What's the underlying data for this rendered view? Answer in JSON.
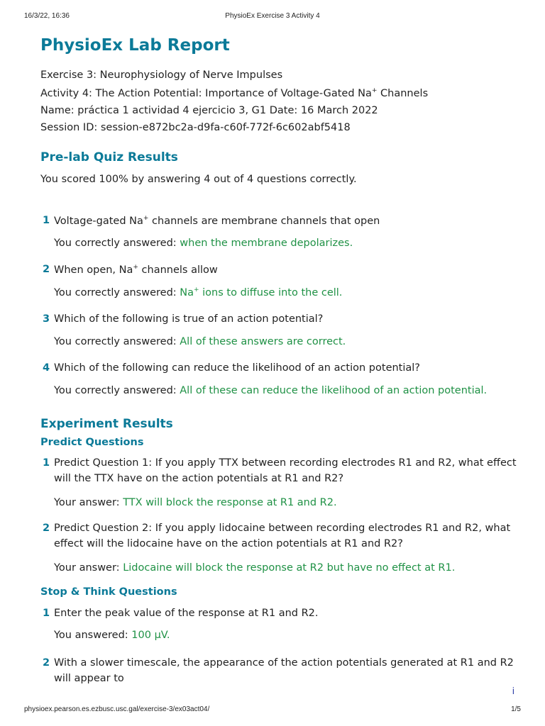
{
  "header": {
    "datetime": "16/3/22, 16:36",
    "title": "PhysioEx Exercise 3 Activity 4"
  },
  "report": {
    "title": "PhysioEx Lab Report",
    "exercise": "Exercise 3: Neurophysiology of Nerve Impulses",
    "activity_a": "Activity 4: The Action Potential: Importance of Voltage-Gated Na",
    "activity_sup": "+",
    "activity_b": " Channels",
    "name": "Name:  práctica 1 actividad 4 ejercicio 3, G1 Date: 16 March 2022",
    "session": "Session ID: session-e872bc2a-d9fa-c60f-772f-6c602abf5418"
  },
  "prelab": {
    "heading": "Pre-lab Quiz Results",
    "score": "You scored 100% by answering 4 out of 4 questions correctly.",
    "answer_prefix": "You correctly answered: ",
    "questions": [
      {
        "num": "1",
        "q_a": "Voltage-gated Na",
        "q_sup": "+",
        "q_b": " channels are membrane channels that open",
        "ans_a": "when the membrane depolarizes."
      },
      {
        "num": "2",
        "q_a": "When open, Na",
        "q_sup": "+",
        "q_b": " channels allow",
        "ans_a": "Na",
        "ans_sup": "+",
        "ans_b": " ions to diffuse into the cell."
      },
      {
        "num": "3",
        "q_a": "Which of the following is true of an action potential?",
        "ans_a": "All of these answers are correct."
      },
      {
        "num": "4",
        "q_a": "Which of the following can reduce the likelihood of an action potential?",
        "ans_a": "All of these can reduce the likelihood of an action potential."
      }
    ]
  },
  "experiment": {
    "heading": "Experiment Results",
    "predict_heading": "Predict Questions",
    "your_answer": "Your answer: ",
    "predict": [
      {
        "num": "1",
        "line1": "Predict Question 1: If you apply TTX between recording electrodes R1 and R2, what effect",
        "line2": "will the TTX have on the action potentials at R1 and R2?",
        "answer": "TTX will block the response at R1 and R2."
      },
      {
        "num": "2",
        "line1": "Predict Question 2: If you apply lidocaine between recording electrodes R1 and R2, what",
        "line2": "effect will the lidocaine have on the action potentials at R1 and R2?",
        "answer": "Lidocaine will block the response at R2 but have no effect at R1."
      }
    ],
    "stop_heading": "Stop & Think Questions",
    "you_answered": "You answered: ",
    "stop": [
      {
        "num": "1",
        "line1": "Enter the peak value of the response at R1 and R2.",
        "answer": "100 μV."
      },
      {
        "num": "2",
        "line1": "With a slower timescale, the appearance of the action potentials generated at R1 and R2",
        "line2": "will appear to"
      }
    ]
  },
  "info_icon": "i",
  "footer": {
    "url": "physioex.pearson.es.ezbusc.usc.gal/exercise-3/ex03act04/",
    "page": "1/5"
  }
}
